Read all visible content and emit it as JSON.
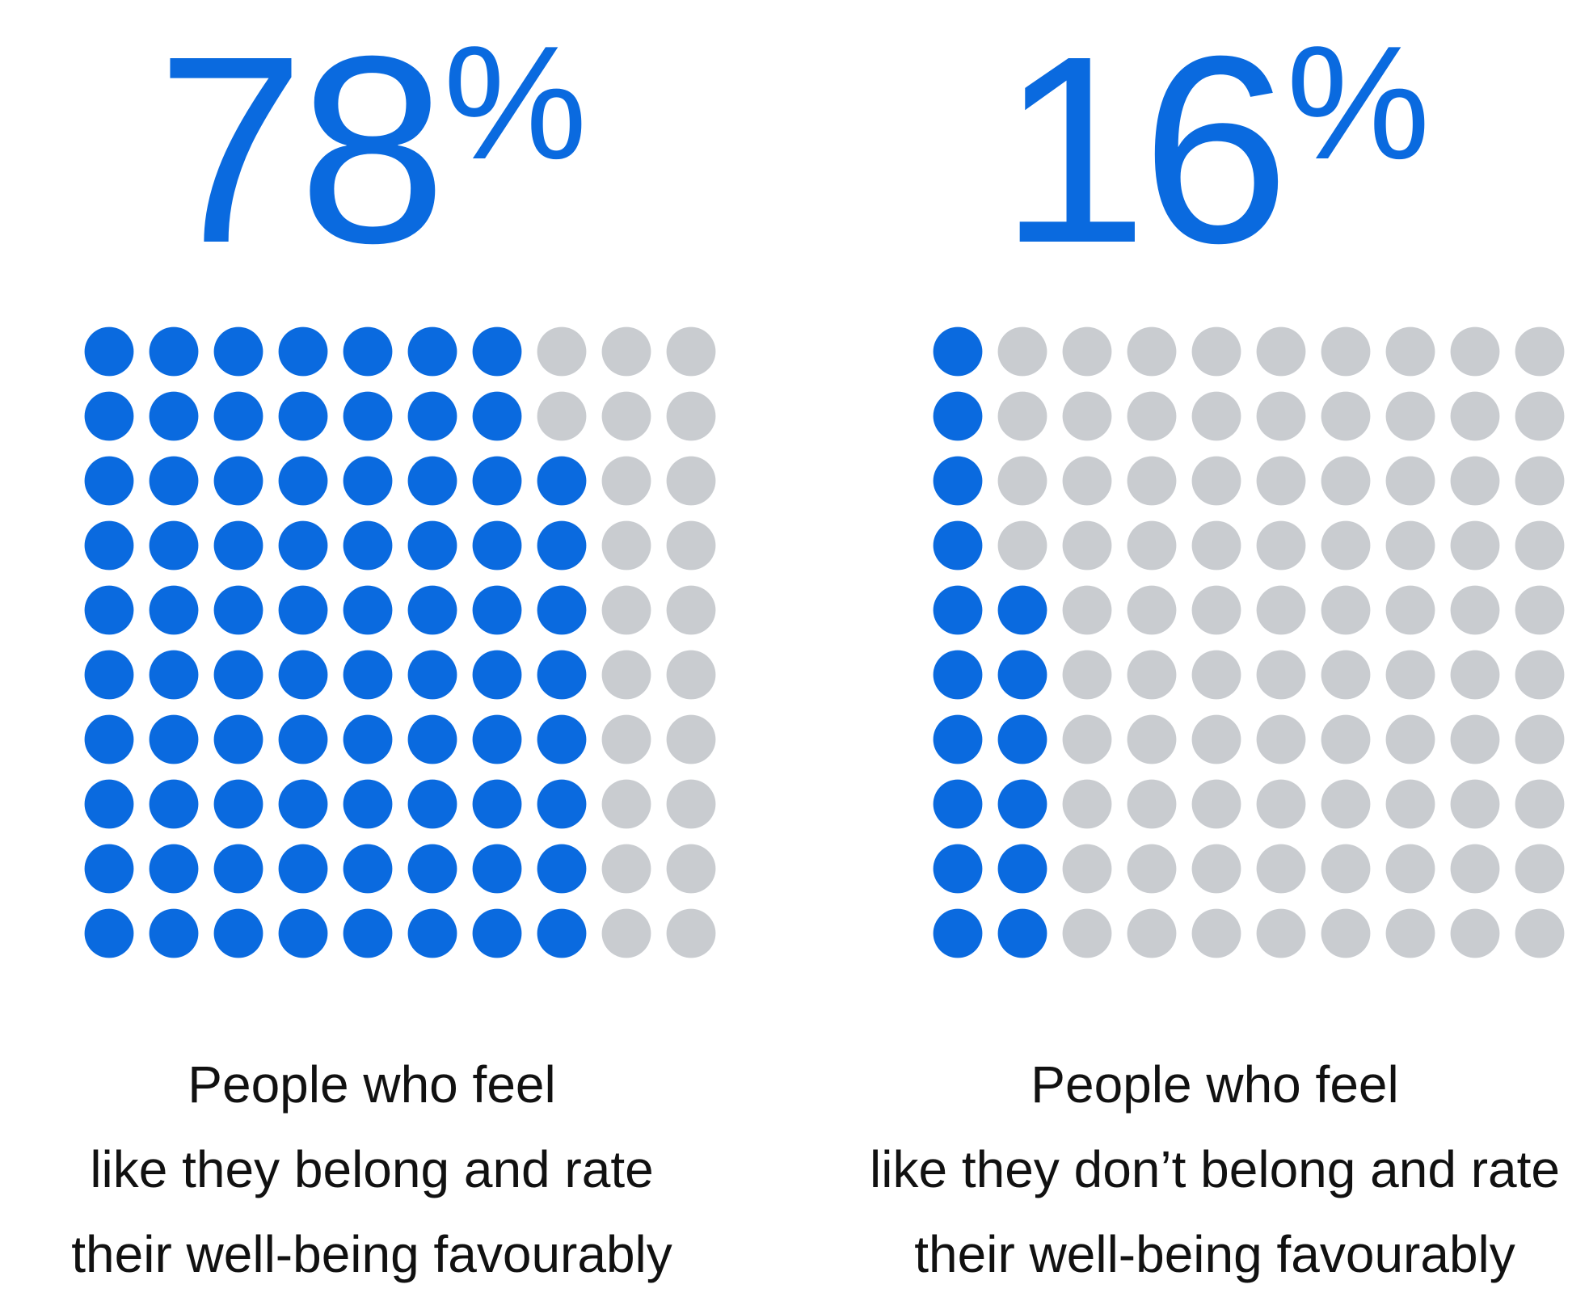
{
  "colors": {
    "accent": "#0a6adf",
    "inactive": "#c9ccd0",
    "text": "#111111"
  },
  "chart_data": [
    {
      "type": "waffle",
      "value": 78,
      "unit": "%",
      "total": 100,
      "caption": [
        "People who feel",
        "like they belong and rate",
        "their well-being favourably"
      ]
    },
    {
      "type": "waffle",
      "value": 16,
      "unit": "%",
      "total": 100,
      "caption": [
        "People who feel",
        "like they don’t belong and rate",
        "their well-being favourably"
      ]
    }
  ]
}
